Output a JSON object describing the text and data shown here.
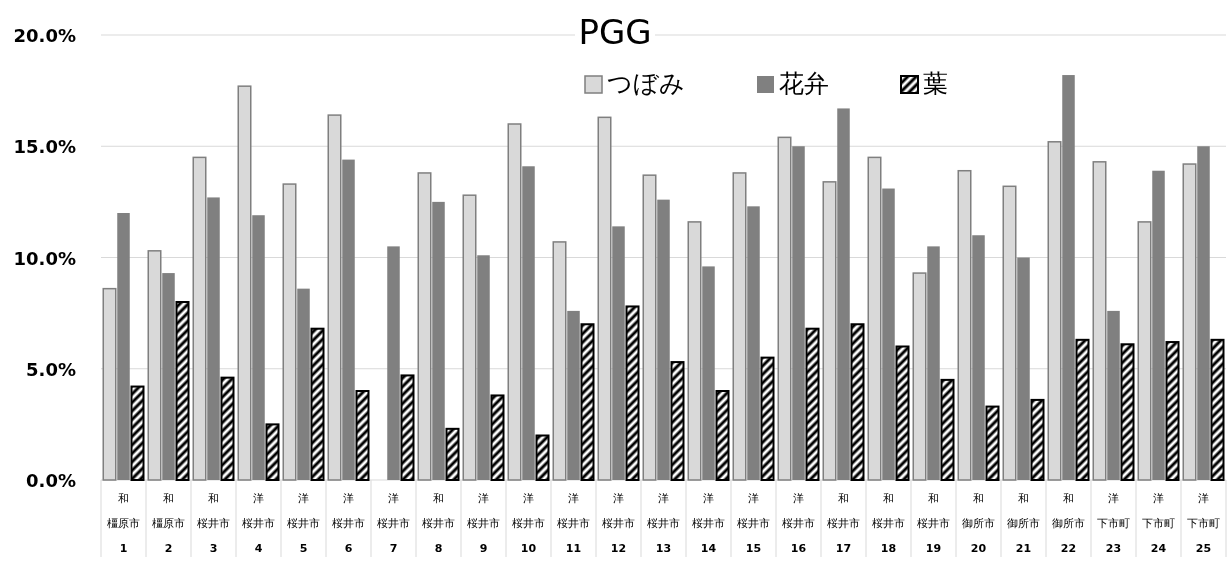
{
  "chart_data": {
    "type": "bar",
    "title": "PGG",
    "categories": [
      "和橿原市1",
      "和橿原市2",
      "和桜井市3",
      "洋桜井市4",
      "洋桜井市5",
      "洋桜井市6",
      "洋桜井市7",
      "和桜井市8",
      "洋桜井市9",
      "洋桜井市10",
      "洋桜井市11",
      "洋桜井市12",
      "洋桜井市13",
      "洋桜井市14",
      "洋桜井市15",
      "洋桜井市16",
      "和桜井市17",
      "和桜井市18",
      "和桜井市19",
      "和御所市20",
      "和御所市21",
      "和御所市22",
      "洋下市町23",
      "洋下市町24",
      "洋下市町25"
    ],
    "series": [
      {
        "name": "つぼみ",
        "color": "#d9d9d9",
        "values": [
          8.6,
          10.3,
          14.5,
          17.7,
          13.3,
          16.4,
          null,
          13.8,
          12.8,
          16.0,
          10.7,
          16.3,
          13.7,
          11.6,
          13.8,
          15.4,
          13.4,
          14.5,
          9.3,
          13.9,
          13.2,
          15.2,
          14.3,
          11.6,
          14.2
        ]
      },
      {
        "name": "花弁",
        "color": "#808080",
        "values": [
          12.0,
          9.3,
          12.7,
          11.9,
          8.6,
          14.4,
          10.5,
          12.5,
          10.1,
          14.1,
          7.6,
          11.4,
          12.6,
          9.6,
          12.3,
          15.0,
          16.7,
          13.1,
          10.5,
          11.0,
          10.0,
          18.2,
          7.6,
          13.9,
          15.0
        ]
      },
      {
        "name": "葉",
        "color": "#000000",
        "values": [
          4.2,
          8.0,
          4.6,
          2.5,
          6.8,
          4.0,
          4.7,
          2.3,
          3.8,
          2.0,
          7.0,
          7.8,
          5.3,
          4.0,
          5.5,
          6.8,
          7.0,
          6.0,
          4.5,
          3.3,
          3.6,
          6.3,
          6.1,
          6.2,
          6.3
        ]
      }
    ],
    "ylim": [
      0,
      20
    ],
    "yticks": [
      {
        "value": 0,
        "label": "0.0%"
      },
      {
        "value": 5,
        "label": "5.0%"
      },
      {
        "value": 10,
        "label": "10.0%"
      },
      {
        "value": 15,
        "label": "15.0%"
      },
      {
        "value": 20,
        "label": "20.0%"
      }
    ],
    "grid": "y",
    "legend": "top right"
  }
}
